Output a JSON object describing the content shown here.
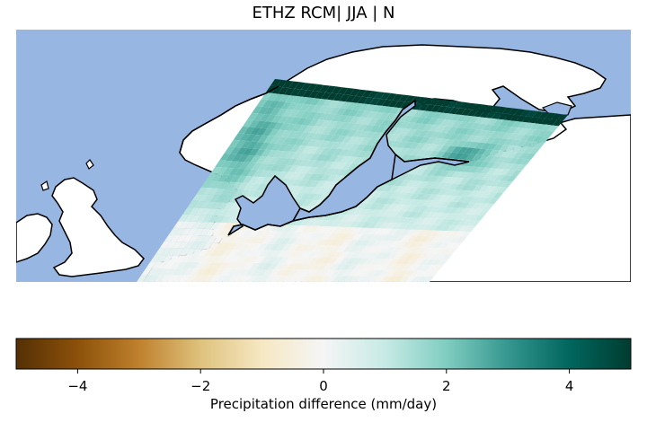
{
  "title": "ETHZ RCM| JJA | N",
  "colorbar": {
    "label": "Precipitation difference (mm/day)",
    "min": -5,
    "max": 5,
    "ticks": [
      -4,
      -2,
      0,
      2,
      4
    ],
    "tick_labels": [
      "−4",
      "−2",
      "0",
      "2",
      "4"
    ],
    "colormap": "BrBG",
    "colors": [
      "#543005",
      "#8c510a",
      "#bf812d",
      "#dfc27d",
      "#f6e8c3",
      "#f5f5f5",
      "#c7eae5",
      "#80cdc1",
      "#35978f",
      "#01665e",
      "#003c30"
    ]
  },
  "map": {
    "ocean_color": "#98b6e2",
    "land_color": "#ffffff",
    "coastline_color": "#000000",
    "field_description_regions": [
      "Scandinavia",
      "Baltic",
      "British Isles"
    ]
  }
}
